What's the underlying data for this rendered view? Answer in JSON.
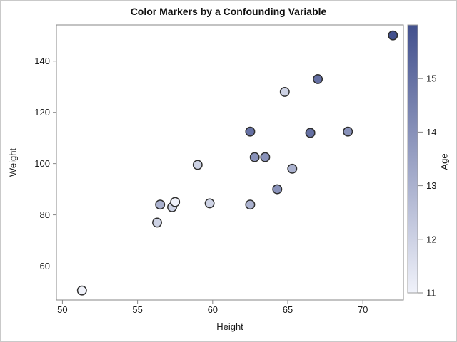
{
  "figure": {
    "background": "#ffffff",
    "border_color": "#c9c9c9"
  },
  "chart_data": {
    "type": "scatter",
    "title": "Color Markers by a Confounding Variable",
    "xlabel": "Height",
    "ylabel": "Weight",
    "colorbar_label": "Age",
    "grid": false,
    "legend_position": "right-colorbar",
    "xlim": [
      49.6,
      72.7
    ],
    "ylim": [
      46.8,
      154.1
    ],
    "x_ticks": [
      50,
      55,
      60,
      65,
      70
    ],
    "y_ticks": [
      60,
      80,
      100,
      120,
      140
    ],
    "color_range": [
      11,
      16
    ],
    "colorbar_ticks": [
      11,
      12,
      13,
      14,
      15
    ],
    "colors": {
      "gradient_low": "#f0f2fa",
      "gradient_high": "#42508d",
      "marker_outline": "#2e2e2e",
      "axis_line": "#878787",
      "colorbar_border": "#9e9e9e",
      "text": "#1a1a1a"
    },
    "points": [
      {
        "height": 69.0,
        "weight": 112.5,
        "age": 14
      },
      {
        "height": 56.5,
        "weight": 84.0,
        "age": 13
      },
      {
        "height": 65.3,
        "weight": 98.0,
        "age": 13
      },
      {
        "height": 62.8,
        "weight": 102.5,
        "age": 14
      },
      {
        "height": 63.5,
        "weight": 102.5,
        "age": 14
      },
      {
        "height": 57.3,
        "weight": 83.0,
        "age": 12
      },
      {
        "height": 59.8,
        "weight": 84.5,
        "age": 12
      },
      {
        "height": 62.5,
        "weight": 112.5,
        "age": 15
      },
      {
        "height": 62.5,
        "weight": 84.0,
        "age": 13
      },
      {
        "height": 59.0,
        "weight": 99.5,
        "age": 12
      },
      {
        "height": 51.3,
        "weight": 50.5,
        "age": 11
      },
      {
        "height": 64.3,
        "weight": 90.0,
        "age": 14
      },
      {
        "height": 56.3,
        "weight": 77.0,
        "age": 12
      },
      {
        "height": 66.5,
        "weight": 112.0,
        "age": 15
      },
      {
        "height": 72.0,
        "weight": 150.0,
        "age": 16
      },
      {
        "height": 64.8,
        "weight": 128.0,
        "age": 12
      },
      {
        "height": 67.0,
        "weight": 133.0,
        "age": 15
      },
      {
        "height": 57.5,
        "weight": 85.0,
        "age": 11
      },
      {
        "height": 66.5,
        "weight": 112.0,
        "age": 15
      }
    ]
  }
}
